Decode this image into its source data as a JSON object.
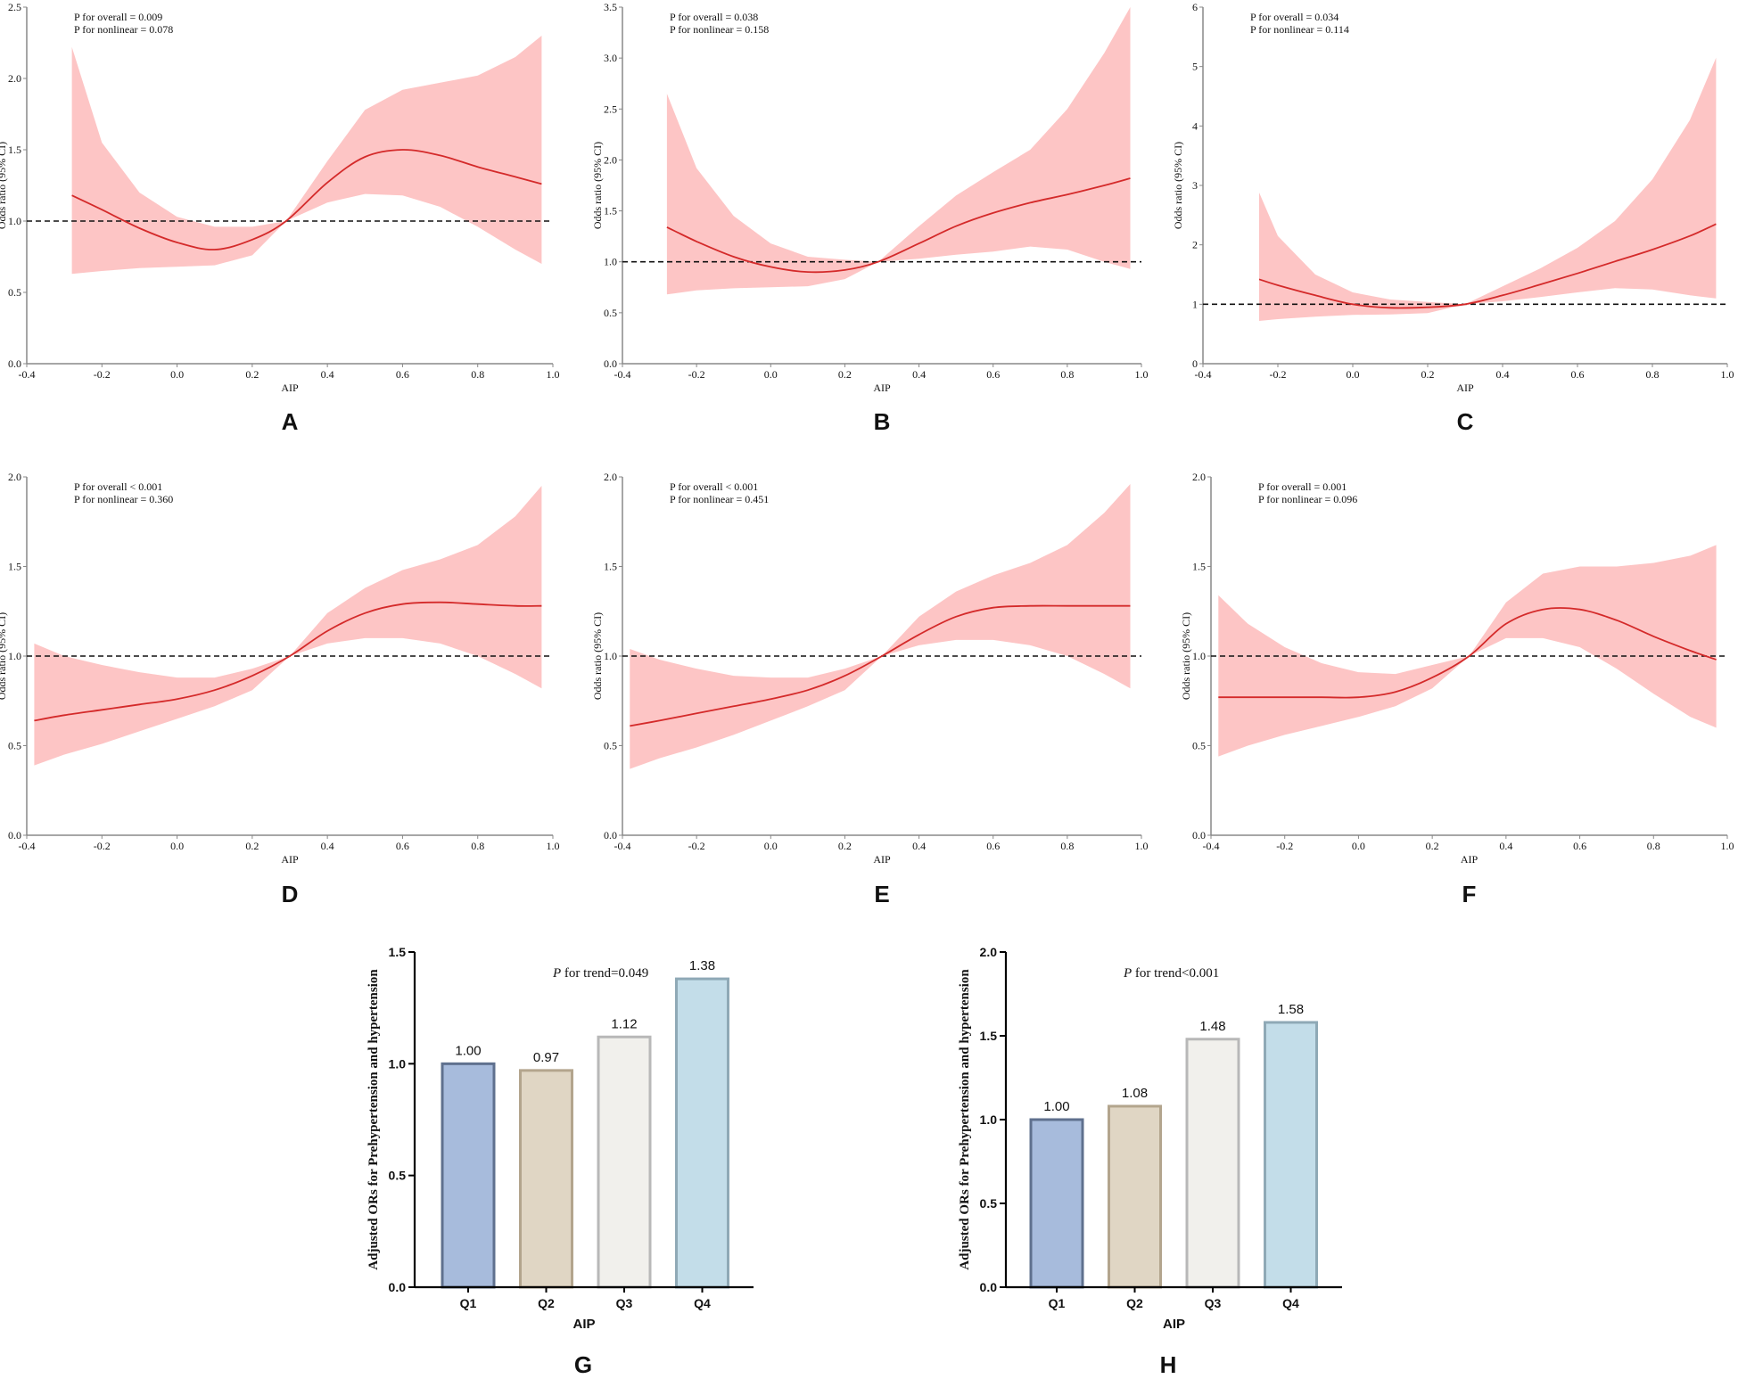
{
  "chart_data": [
    {
      "panel": "A",
      "type": "line",
      "xlabel": "AIP",
      "ylabel": "Odds ratio (95% CI)",
      "xlim": [
        -0.4,
        1.0
      ],
      "ylim": [
        0,
        2.5
      ],
      "xticks": [
        "-0.4",
        "-0.2",
        "0.0",
        "0.2",
        "0.4",
        "0.6",
        "0.8",
        "1.0"
      ],
      "yticks": [
        "0.0",
        "0.5",
        "1.0",
        "1.5",
        "2.0",
        "2.5"
      ],
      "reference_line": 1.0,
      "p_overall": "P for overall = 0.009",
      "p_nonlinear": "P for nonlinear = 0.078",
      "curve": {
        "x": [
          -0.28,
          -0.2,
          -0.1,
          0.0,
          0.1,
          0.2,
          0.29,
          0.4,
          0.5,
          0.6,
          0.7,
          0.8,
          0.9,
          0.97
        ],
        "y": [
          1.18,
          1.08,
          0.95,
          0.85,
          0.8,
          0.87,
          1.0,
          1.27,
          1.45,
          1.5,
          1.46,
          1.38,
          1.31,
          1.26
        ]
      },
      "lower": [
        0.63,
        0.65,
        0.67,
        0.68,
        0.69,
        0.76,
        1.0,
        1.13,
        1.19,
        1.18,
        1.1,
        0.96,
        0.8,
        0.7
      ],
      "upper": [
        2.22,
        1.55,
        1.2,
        1.03,
        0.96,
        0.96,
        1.0,
        1.42,
        1.78,
        1.92,
        1.97,
        2.02,
        2.15,
        2.3
      ]
    },
    {
      "panel": "B",
      "type": "line",
      "xlabel": "AIP",
      "ylabel": "Odds ratio (95% CI)",
      "xlim": [
        -0.4,
        1.0
      ],
      "ylim": [
        0,
        3.5
      ],
      "xticks": [
        "-0.4",
        "-0.2",
        "0.0",
        "0.2",
        "0.4",
        "0.6",
        "0.8",
        "1.0"
      ],
      "yticks": [
        "0.0",
        "0.5",
        "1.0",
        "1.5",
        "2.0",
        "2.5",
        "3.0",
        "3.5"
      ],
      "reference_line": 1.0,
      "p_overall": "P for overall = 0.038",
      "p_nonlinear": "P for nonlinear = 0.158",
      "curve": {
        "x": [
          -0.28,
          -0.2,
          -0.1,
          0.0,
          0.1,
          0.2,
          0.29,
          0.4,
          0.5,
          0.6,
          0.7,
          0.8,
          0.9,
          0.97
        ],
        "y": [
          1.34,
          1.2,
          1.05,
          0.95,
          0.9,
          0.92,
          1.0,
          1.18,
          1.35,
          1.48,
          1.58,
          1.66,
          1.75,
          1.82
        ]
      },
      "lower": [
        0.68,
        0.72,
        0.74,
        0.75,
        0.76,
        0.83,
        1.0,
        1.03,
        1.07,
        1.1,
        1.15,
        1.12,
        1.0,
        0.93
      ],
      "upper": [
        2.65,
        1.92,
        1.45,
        1.18,
        1.05,
        1.02,
        1.0,
        1.35,
        1.65,
        1.88,
        2.1,
        2.5,
        3.05,
        3.5
      ]
    },
    {
      "panel": "C",
      "type": "line",
      "xlabel": "AIP",
      "ylabel": "Odds ratio (95% CI)",
      "xlim": [
        -0.4,
        1.0
      ],
      "ylim": [
        0,
        6
      ],
      "xticks": [
        "-0.4",
        "-0.2",
        "0.0",
        "0.2",
        "0.4",
        "0.6",
        "0.8",
        "1.0"
      ],
      "yticks": [
        "0",
        "1",
        "2",
        "3",
        "4",
        "5",
        "6"
      ],
      "reference_line": 1.0,
      "p_overall": "P for overall = 0.034",
      "p_nonlinear": "P for nonlinear = 0.114",
      "curve": {
        "x": [
          -0.25,
          -0.2,
          -0.1,
          0.0,
          0.1,
          0.2,
          0.3,
          0.4,
          0.5,
          0.6,
          0.7,
          0.8,
          0.9,
          0.97
        ],
        "y": [
          1.42,
          1.32,
          1.15,
          1.0,
          0.94,
          0.95,
          1.0,
          1.15,
          1.33,
          1.52,
          1.72,
          1.92,
          2.15,
          2.35
        ]
      },
      "lower": [
        0.72,
        0.75,
        0.79,
        0.82,
        0.83,
        0.85,
        1.0,
        1.05,
        1.12,
        1.2,
        1.27,
        1.25,
        1.15,
        1.1
      ],
      "upper": [
        2.88,
        2.15,
        1.5,
        1.2,
        1.08,
        1.04,
        1.0,
        1.3,
        1.6,
        1.95,
        2.4,
        3.1,
        4.1,
        5.15
      ]
    },
    {
      "panel": "D",
      "type": "line",
      "xlabel": "AIP",
      "ylabel": "Odds ratio (95% CI)",
      "xlim": [
        -0.4,
        1.0
      ],
      "ylim": [
        0,
        2.0
      ],
      "xticks": [
        "-0.4",
        "-0.2",
        "0.0",
        "0.2",
        "0.4",
        "0.6",
        "0.8",
        "1.0"
      ],
      "yticks": [
        "0.0",
        "0.5",
        "1.0",
        "1.5",
        "2.0"
      ],
      "reference_line": 1.0,
      "p_overall": "P for overall < 0.001",
      "p_nonlinear": "P for nonlinear = 0.360",
      "curve": {
        "x": [
          -0.38,
          -0.3,
          -0.2,
          -0.1,
          0.0,
          0.1,
          0.2,
          0.3,
          0.4,
          0.5,
          0.6,
          0.7,
          0.8,
          0.9,
          0.97
        ],
        "y": [
          0.64,
          0.67,
          0.7,
          0.73,
          0.76,
          0.81,
          0.89,
          1.0,
          1.14,
          1.24,
          1.29,
          1.3,
          1.29,
          1.28,
          1.28
        ]
      },
      "lower": [
        0.39,
        0.45,
        0.51,
        0.58,
        0.65,
        0.72,
        0.81,
        1.0,
        1.07,
        1.1,
        1.1,
        1.07,
        1.0,
        0.9,
        0.82
      ],
      "upper": [
        1.07,
        1.0,
        0.95,
        0.91,
        0.88,
        0.88,
        0.93,
        1.0,
        1.24,
        1.38,
        1.48,
        1.54,
        1.62,
        1.78,
        1.95
      ]
    },
    {
      "panel": "E",
      "type": "line",
      "xlabel": "AIP",
      "ylabel": "Odds ratio (95% CI)",
      "xlim": [
        -0.4,
        1.0
      ],
      "ylim": [
        0,
        2.0
      ],
      "xticks": [
        "-0.4",
        "-0.2",
        "0.0",
        "0.2",
        "0.4",
        "0.6",
        "0.8",
        "1.0"
      ],
      "yticks": [
        "0.0",
        "0.5",
        "1.0",
        "1.5",
        "2.0"
      ],
      "reference_line": 1.0,
      "p_overall": "P for overall < 0.001",
      "p_nonlinear": "P for nonlinear = 0.451",
      "curve": {
        "x": [
          -0.38,
          -0.3,
          -0.2,
          -0.1,
          0.0,
          0.1,
          0.2,
          0.3,
          0.4,
          0.5,
          0.6,
          0.7,
          0.8,
          0.9,
          0.97
        ],
        "y": [
          0.61,
          0.64,
          0.68,
          0.72,
          0.76,
          0.81,
          0.89,
          1.0,
          1.12,
          1.22,
          1.27,
          1.28,
          1.28,
          1.28,
          1.28
        ]
      },
      "lower": [
        0.37,
        0.43,
        0.49,
        0.56,
        0.64,
        0.72,
        0.81,
        1.0,
        1.06,
        1.09,
        1.09,
        1.06,
        1.0,
        0.9,
        0.82
      ],
      "upper": [
        1.04,
        0.98,
        0.93,
        0.89,
        0.88,
        0.88,
        0.93,
        1.0,
        1.22,
        1.36,
        1.45,
        1.52,
        1.62,
        1.8,
        1.96
      ]
    },
    {
      "panel": "F",
      "type": "line",
      "xlabel": "AIP",
      "ylabel": "Odds ratio (95% CI)",
      "xlim": [
        -0.4,
        1.0
      ],
      "ylim": [
        0,
        2.0
      ],
      "xticks": [
        "-0.4",
        "-0.2",
        "0.0",
        "0.2",
        "0.4",
        "0.6",
        "0.8",
        "1.0"
      ],
      "yticks": [
        "0.0",
        "0.5",
        "1.0",
        "1.5",
        "2.0"
      ],
      "reference_line": 1.0,
      "p_overall": "P for overall = 0.001",
      "p_nonlinear": "P for nonlinear = 0.096",
      "curve": {
        "x": [
          -0.38,
          -0.3,
          -0.2,
          -0.1,
          0.0,
          0.1,
          0.2,
          0.3,
          0.4,
          0.5,
          0.6,
          0.7,
          0.8,
          0.9,
          0.97
        ],
        "y": [
          0.77,
          0.77,
          0.77,
          0.77,
          0.77,
          0.8,
          0.88,
          1.0,
          1.18,
          1.26,
          1.26,
          1.2,
          1.11,
          1.03,
          0.98
        ]
      },
      "lower": [
        0.44,
        0.5,
        0.56,
        0.61,
        0.66,
        0.72,
        0.82,
        1.0,
        1.1,
        1.1,
        1.05,
        0.93,
        0.79,
        0.66,
        0.6
      ],
      "upper": [
        1.34,
        1.18,
        1.05,
        0.96,
        0.91,
        0.9,
        0.95,
        1.0,
        1.3,
        1.46,
        1.5,
        1.5,
        1.52,
        1.56,
        1.62
      ]
    },
    {
      "panel": "G",
      "type": "bar",
      "categories": [
        "Q1",
        "Q2",
        "Q3",
        "Q4"
      ],
      "values": [
        1.0,
        0.97,
        1.12,
        1.38
      ],
      "value_labels": [
        "1.00",
        "0.97",
        "1.12",
        "1.38"
      ],
      "colors": [
        "#a7bbdc",
        "#e0d6c4",
        "#f1f0ec",
        "#c3dde9"
      ],
      "edge_colors": [
        "#5f708e",
        "#b3a58d",
        "#b8b8b8",
        "#8fa9b6"
      ],
      "ylim": [
        0,
        1.5
      ],
      "yticks": [
        "0.0",
        "0.5",
        "1.0",
        "1.5"
      ],
      "xlabel": "AIP",
      "ylabel": "Adjusted ORs for Prehypertension and hypertension",
      "trend_p": "P",
      "trend_text": " for trend=0.049"
    },
    {
      "panel": "H",
      "type": "bar",
      "categories": [
        "Q1",
        "Q2",
        "Q3",
        "Q4"
      ],
      "values": [
        1.0,
        1.08,
        1.48,
        1.58
      ],
      "value_labels": [
        "1.00",
        "1.08",
        "1.48",
        "1.58"
      ],
      "colors": [
        "#a7bbdc",
        "#e0d6c4",
        "#f1f0ec",
        "#c3dde9"
      ],
      "edge_colors": [
        "#5f708e",
        "#b3a58d",
        "#b8b8b8",
        "#8fa9b6"
      ],
      "ylim": [
        0,
        2.0
      ],
      "yticks": [
        "0.0",
        "0.5",
        "1.0",
        "1.5",
        "2.0"
      ],
      "xlabel": "AIP",
      "ylabel": "Adjusted ORs for Prehypertension and hypertension",
      "trend_p": "P",
      "trend_text": " for trend<0.001"
    }
  ],
  "colors": {
    "curve": "#d42a2a",
    "band": "#fdc5c5",
    "reference": "#111111",
    "axis": "#888888",
    "bar_axis": "#000000"
  }
}
